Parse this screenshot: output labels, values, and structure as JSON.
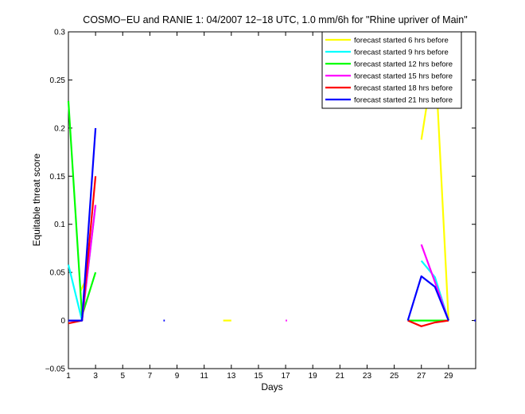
{
  "chart_data": {
    "type": "line",
    "title": "COSMO−EU and RANIE 1: 04/2007 12−18 UTC, 1.0 mm/6h for \"Rhine upriver of Main\"",
    "xlabel": "Days",
    "ylabel": "Equitable threat score",
    "xlim": [
      1,
      31
    ],
    "ylim": [
      -0.05,
      0.3
    ],
    "x_ticks": [
      1,
      3,
      5,
      7,
      9,
      11,
      13,
      15,
      17,
      19,
      21,
      23,
      25,
      27,
      29
    ],
    "y_ticks": [
      -0.05,
      0,
      0.05,
      0.1,
      0.15,
      0.2,
      0.25,
      0.3
    ],
    "y_tick_labels": [
      "−0.05",
      "0",
      "0.05",
      "0.1",
      "0.15",
      "0.2",
      "0.25",
      "0.3"
    ],
    "grid": false,
    "legend_position": "top-right",
    "series": [
      {
        "name": "forecast started 6 hrs before",
        "color": "#ffff00",
        "segments": [
          [
            [
              1.9,
              0.031
            ],
            [
              2.4,
              0.045
            ]
          ],
          [
            [
              12.4,
              0
            ],
            [
              13.0,
              0
            ]
          ],
          [
            [
              27.0,
              0.188
            ],
            [
              28.0,
              0.278
            ],
            [
              29.0,
              0
            ]
          ]
        ]
      },
      {
        "name": "forecast started 9 hrs before",
        "color": "#00ffff",
        "segments": [
          [
            [
              1.0,
              0.058
            ],
            [
              2.0,
              0
            ],
            [
              3.0,
              0.12
            ]
          ],
          [
            [
              27.0,
              0.062
            ],
            [
              28.0,
              0.045
            ],
            [
              29.0,
              0
            ]
          ]
        ]
      },
      {
        "name": "forecast started 12 hrs before",
        "color": "#00ff00",
        "segments": [
          [
            [
              1.0,
              0.228
            ],
            [
              2.0,
              0.005
            ],
            [
              3.0,
              0.05
            ]
          ],
          [
            [
              26.0,
              0
            ],
            [
              27.0,
              0
            ],
            [
              28.0,
              0
            ],
            [
              29.0,
              0
            ]
          ]
        ]
      },
      {
        "name": "forecast started 15 hrs before",
        "color": "#ff00ff",
        "segments": [
          [
            [
              1.0,
              0
            ],
            [
              2.0,
              0
            ],
            [
              3.0,
              0.12
            ]
          ],
          [
            [
              17.0,
              0
            ],
            [
              17.1,
              0
            ]
          ],
          [
            [
              27.0,
              0.079
            ],
            [
              28.0,
              0.04
            ],
            [
              29.0,
              0
            ]
          ]
        ]
      },
      {
        "name": "forecast started 18 hrs before",
        "color": "#ff0000",
        "segments": [
          [
            [
              1.0,
              -0.003
            ],
            [
              2.0,
              0
            ],
            [
              3.0,
              0.15
            ]
          ],
          [
            [
              26.0,
              0
            ],
            [
              27.0,
              -0.006
            ],
            [
              28.0,
              -0.002
            ],
            [
              29.0,
              0
            ]
          ]
        ]
      },
      {
        "name": "forecast started 21 hrs before",
        "color": "#0000ff",
        "segments": [
          [
            [
              1.0,
              0
            ],
            [
              2.0,
              0
            ],
            [
              3.0,
              0.2
            ]
          ],
          [
            [
              8.0,
              0
            ],
            [
              8.1,
              0
            ]
          ],
          [
            [
              26.0,
              0
            ],
            [
              27.0,
              0.046
            ],
            [
              28.0,
              0.035
            ],
            [
              29.0,
              0
            ]
          ],
          [
            [
              30.9,
              0
            ],
            [
              31.0,
              0
            ]
          ]
        ]
      }
    ]
  }
}
